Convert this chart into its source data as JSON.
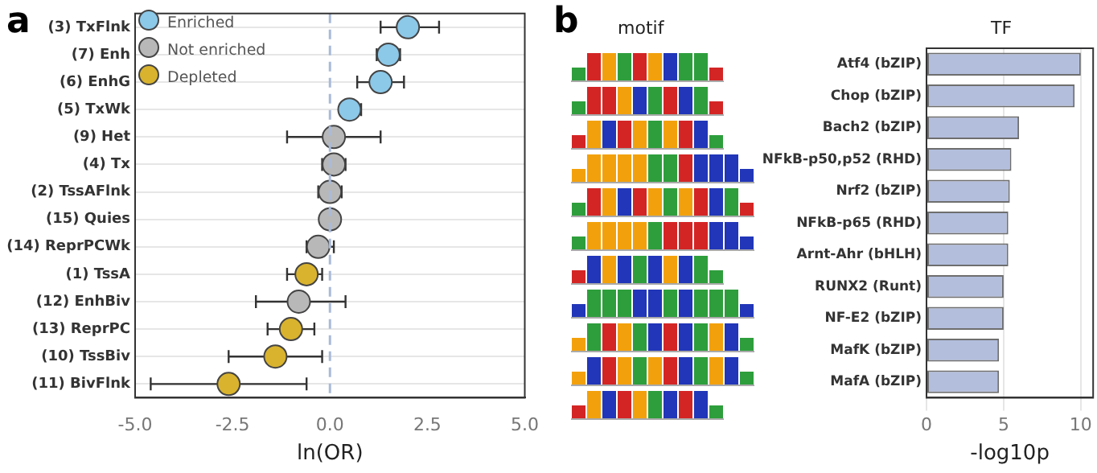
{
  "chart_data": [
    {
      "type": "scatter",
      "title": "a",
      "orientation": "horizontal",
      "xlabel": "ln(OR)",
      "categories": [
        "(3) TxFlnk",
        "(7) Enh",
        "(6) EnhG",
        "(5) TxWk",
        "(9) Het",
        "(4) Tx",
        "(2) TssAFlnk",
        "(15) Quies",
        "(14) ReprPCWk",
        "(1) TssA",
        "(12) EnhBiv",
        "(13) ReprPC",
        "(10) TssBiv",
        "(11) BivFlnk"
      ],
      "series": [
        {
          "name": "Enriched",
          "color": "#8cc8e8",
          "values": [
            2.0,
            1.5,
            1.3,
            0.5,
            null,
            null,
            null,
            null,
            null,
            null,
            null,
            null,
            null,
            null
          ],
          "errors": [
            [
              1.3,
              2.8
            ],
            [
              1.2,
              1.8
            ],
            [
              0.7,
              1.9
            ],
            [
              0.3,
              0.8
            ],
            null,
            null,
            null,
            null,
            null,
            null,
            null,
            null,
            null,
            null
          ]
        },
        {
          "name": "Not enriched",
          "color": "#b8b8b8",
          "values": [
            null,
            null,
            null,
            null,
            0.1,
            0.1,
            0.0,
            0.0,
            -0.3,
            null,
            -0.8,
            null,
            null,
            null
          ],
          "errors": [
            null,
            null,
            null,
            null,
            [
              -1.1,
              1.3
            ],
            [
              -0.2,
              0.4
            ],
            [
              -0.3,
              0.3
            ],
            null,
            [
              -0.6,
              0.1
            ],
            null,
            [
              -1.9,
              0.4
            ],
            null,
            null,
            null
          ]
        },
        {
          "name": "Depleted",
          "color": "#d9b32e",
          "values": [
            null,
            null,
            null,
            null,
            null,
            null,
            null,
            null,
            null,
            -0.6,
            null,
            -1.0,
            -1.4,
            -2.6
          ],
          "errors": [
            null,
            null,
            null,
            null,
            null,
            null,
            null,
            null,
            null,
            [
              -1.1,
              -0.2
            ],
            null,
            [
              -1.6,
              -0.4
            ],
            [
              -2.6,
              -0.2
            ],
            [
              -4.6,
              -0.6
            ]
          ]
        }
      ],
      "xlim": [
        -5,
        5
      ],
      "xticks": [
        {
          "value": -5,
          "label": "-5.0"
        },
        {
          "value": -2.5,
          "label": "-2.5"
        },
        {
          "value": 0,
          "label": "0.0"
        },
        {
          "value": 2.5,
          "label": "2.5"
        },
        {
          "value": 5,
          "label": "5.0"
        }
      ],
      "ref_lines": [
        {
          "axis": "x",
          "value": 0,
          "color": "#a9bad9",
          "line_style": "dashed"
        }
      ],
      "grid": "y",
      "legend": "top left",
      "marker": "circle"
    },
    {
      "type": "bar",
      "title": "b",
      "orientation": "horizontal",
      "xlabel": "-log10p",
      "ylabel": "TF",
      "annotations": [
        "motif"
      ],
      "categories": [
        "Atf4 (bZIP)",
        "Chop (bZIP)",
        "Bach2 (bZIP)",
        "NFkB-p50,p52 (RHD)",
        "Nrf2 (bZIP)",
        "NFkB-p65 (RHD)",
        "Arnt-Ahr (bHLH)",
        "RUNX2 (Runt)",
        "NF-E2 (bZIP)",
        "MafK (bZIP)",
        "MafA (bZIP)"
      ],
      "values": [
        10.0,
        9.6,
        6.0,
        5.5,
        5.4,
        5.3,
        5.3,
        5.0,
        5.0,
        4.7,
        4.7
      ],
      "color": "#b3bedd",
      "xlim": [
        0,
        10.8
      ],
      "xticks": [
        0,
        5,
        10
      ],
      "grid": "x",
      "legend": false
    }
  ]
}
